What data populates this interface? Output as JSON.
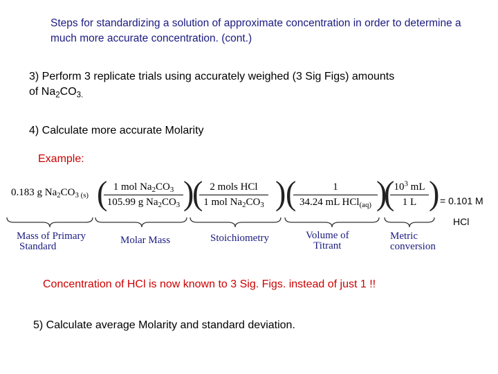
{
  "title": "Steps for standardizing a solution of approximate concentration in order to determine a much more accurate concentration. (cont.)",
  "step3": {
    "line1": "3)  Perform 3 replicate trials using accurately weighed (3 Sig Figs) amounts",
    "line2_prefix": "of Na",
    "line2_sub1": "2",
    "line2_mid": "CO",
    "line2_sub2": "3."
  },
  "step4": "4)  Calculate more accurate Molarity",
  "example_label": "Example:",
  "equation": {
    "mass_value": "0.183 g Na",
    "mass_sub1": "2",
    "mass_mid": "CO",
    "mass_sub2": "3 (s)",
    "frac1_num": "1 mol Na",
    "frac1_num_sub1": "2",
    "frac1_num_mid": "CO",
    "frac1_num_sub2": "3",
    "frac1_den": "105.99 g Na",
    "frac1_den_sub1": "2",
    "frac1_den_mid": "CO",
    "frac1_den_sub2": "3",
    "frac2_num": "2 mols HCl",
    "frac2_den": "1 mol Na",
    "frac2_den_sub1": "2",
    "frac2_den_mid": "CO",
    "frac2_den_sub2": "3",
    "frac3_num": "1",
    "frac3_den": "34.24 mL HCl",
    "frac3_den_sub": "(aq)",
    "frac4_num_base": "10",
    "frac4_num_sup": "3",
    "frac4_num_unit": " mL",
    "frac4_den": "1 L",
    "result_line1": "= 0.101 M",
    "result_line2": "HCl"
  },
  "brace_labels": {
    "mass": [
      "Mass of Primary",
      "Standard"
    ],
    "molar": "Molar Mass",
    "stoich": "Stoichiometry",
    "volume": [
      "Volume of",
      "Titrant"
    ],
    "metric": [
      "Metric",
      "conversion"
    ]
  },
  "conclusion": "Concentration of HCl is now known to 3 Sig. Figs. instead of just 1 !!",
  "step5": "5) Calculate average Molarity and standard deviation.",
  "colors": {
    "title": "#1a1a80",
    "highlight": "#cc0000"
  }
}
